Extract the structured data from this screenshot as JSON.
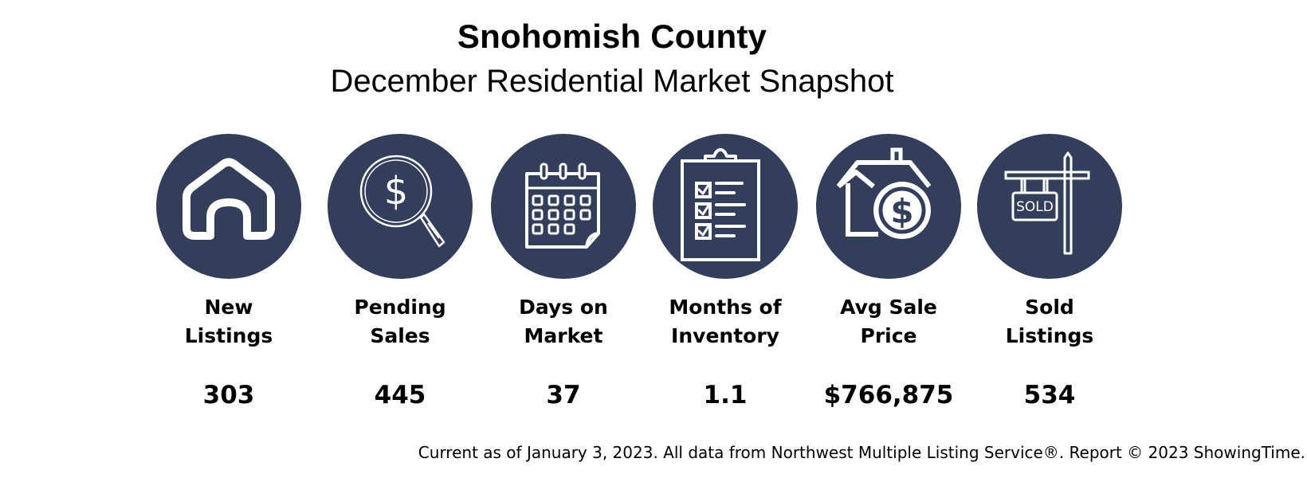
{
  "header": {
    "title": "Snohomish County",
    "subtitle": "December Residential Market Snapshot"
  },
  "colors": {
    "circle_fill": "#333e5b",
    "icon_stroke": "#ffffff",
    "text": "#000000"
  },
  "stats": [
    {
      "icon": "house-icon",
      "label_line1": "New",
      "label_line2": "Listings",
      "value": "303"
    },
    {
      "icon": "dollar-magnifier-icon",
      "label_line1": "Pending",
      "label_line2": "Sales",
      "value": "445"
    },
    {
      "icon": "calendar-icon",
      "label_line1": "Days on",
      "label_line2": "Market",
      "value": "37"
    },
    {
      "icon": "checklist-clipboard-icon",
      "label_line1": "Months of",
      "label_line2": "Inventory",
      "value": "1.1"
    },
    {
      "icon": "house-dollar-icon",
      "label_line1": "Avg Sale",
      "label_line2": "Price",
      "value": "$766,875"
    },
    {
      "icon": "sold-sign-icon",
      "label_line1": "Sold",
      "label_line2": "Listings",
      "value": "534",
      "sign_text": "SOLD"
    }
  ],
  "footer": {
    "note": "Current as of January 3, 2023. All data from Northwest Multiple Listing Service®. Report © 2023 ShowingTime."
  }
}
